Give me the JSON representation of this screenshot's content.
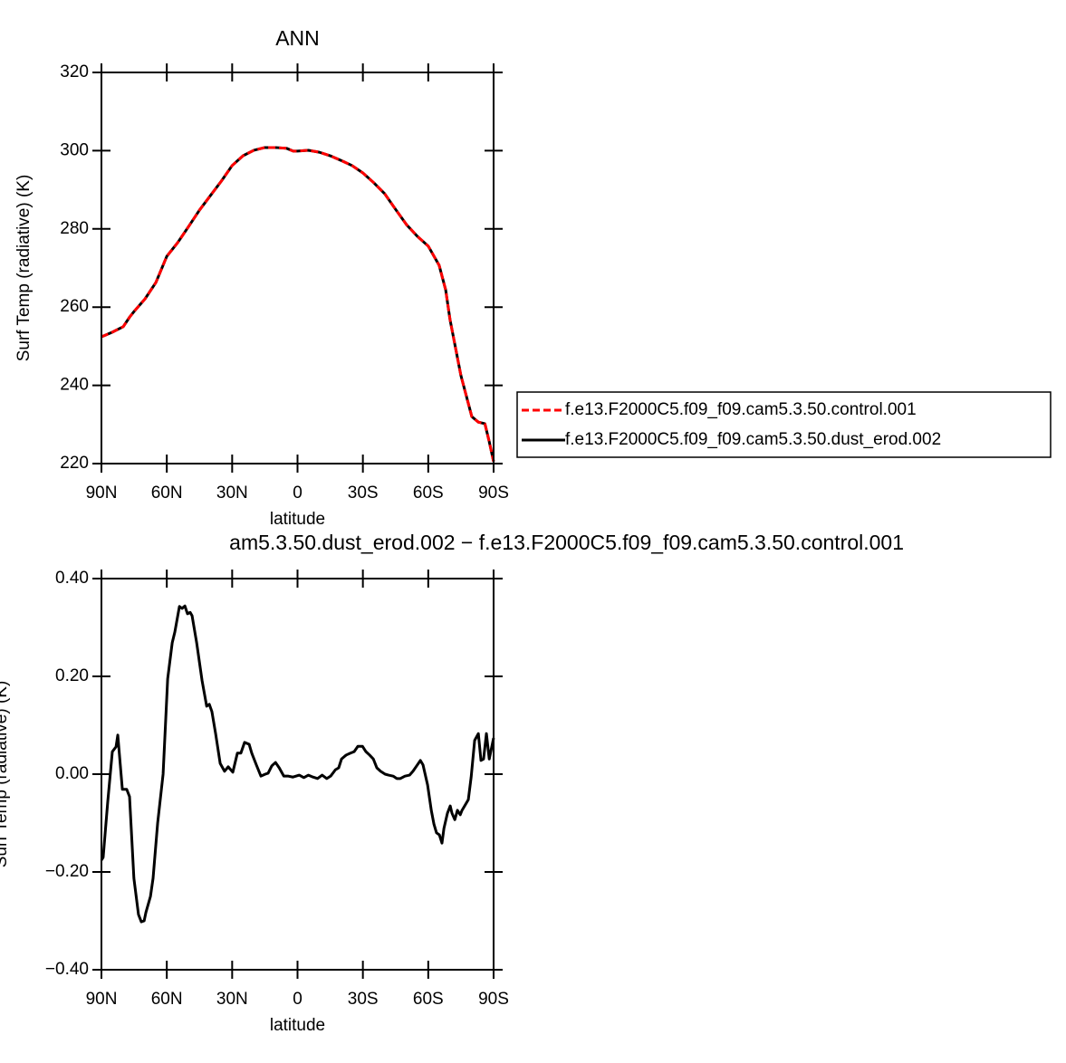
{
  "chart_data": [
    {
      "type": "line",
      "title": "ANN",
      "ylabel": "Surf Temp (radiative) (K)",
      "xlabel": "latitude",
      "x": [
        90,
        85,
        80,
        77,
        75,
        70,
        65,
        60,
        55,
        50,
        45,
        40,
        35,
        30,
        25,
        20,
        15,
        10,
        5,
        2,
        0,
        -5,
        -10,
        -15,
        -20,
        -25,
        -30,
        -35,
        -40,
        -45,
        -50,
        -55,
        -60,
        -65,
        -68,
        -70,
        -75,
        -80,
        -83,
        -86,
        -88,
        -90
      ],
      "series": [
        {
          "name": "f.e13.F2000C5.f09_f09.cam5.3.50.control.001",
          "color": "#ff0000",
          "dashed": true,
          "values": [
            252.4,
            253.6,
            255,
            257.5,
            258.9,
            262.1,
            266.3,
            273,
            276.5,
            280.6,
            284.8,
            288.5,
            292.2,
            296.2,
            298.7,
            300.1,
            300.8,
            300.8,
            300.6,
            299.9,
            299.9,
            300.1,
            299.6,
            298.7,
            297.5,
            296.2,
            294.3,
            291.8,
            289,
            285,
            281.1,
            278.1,
            275.6,
            270.7,
            264.4,
            256.8,
            242.5,
            232,
            230.6,
            230.2,
            225.6,
            220.5
          ]
        },
        {
          "name": "f.e13.F2000C5.f09_f09.cam5.3.50.dust_erod.002",
          "color": "#000000",
          "dashed": false,
          "values": [
            252.4,
            253.6,
            255,
            257.5,
            258.9,
            262.1,
            266.3,
            273,
            276.5,
            280.6,
            284.8,
            288.5,
            292.2,
            296.2,
            298.7,
            300.1,
            300.8,
            300.8,
            300.6,
            299.9,
            299.9,
            300.1,
            299.6,
            298.7,
            297.5,
            296.2,
            294.3,
            291.8,
            289,
            285,
            281.1,
            278.1,
            275.6,
            270.7,
            264.4,
            256.8,
            242.5,
            232,
            230.6,
            230.2,
            225.6,
            220.5
          ]
        }
      ],
      "xlim": [
        90,
        -90
      ],
      "xticks": [
        {
          "value": 90,
          "label": "90N"
        },
        {
          "value": 60,
          "label": "60N"
        },
        {
          "value": 30,
          "label": "30N"
        },
        0,
        {
          "value": -30,
          "label": "30S"
        },
        {
          "value": -60,
          "label": "60S"
        },
        {
          "value": -90,
          "label": "90S"
        }
      ],
      "ylim": [
        220,
        320
      ],
      "yticks": [
        220,
        240,
        260,
        280,
        300,
        320
      ],
      "legend": "right"
    },
    {
      "type": "line",
      "title": "am5.3.50.dust_erod.002 − f.e13.F2000C5.f09_f09.cam5.3.50.control.001",
      "ylabel": "Surf Temp (radiative) (K)",
      "xlabel": "latitude",
      "x": [
        90,
        89.2,
        87.1,
        85,
        83.3,
        82.5,
        80.4,
        78.4,
        77.1,
        75.1,
        73,
        71.7,
        70.4,
        69.6,
        67.5,
        66.3,
        64.2,
        61.7,
        59.6,
        57.5,
        56.3,
        54.2,
        53,
        51.7,
        50.5,
        49.3,
        48.4,
        46.3,
        43.8,
        41.7,
        40.5,
        39.3,
        37.6,
        35.5,
        33.5,
        31.8,
        29.7,
        27.6,
        26,
        24.3,
        22.2,
        21,
        18.9,
        16.8,
        14.8,
        13.5,
        11.8,
        10.1,
        8.4,
        6.3,
        4.2,
        2.1,
        -0.8,
        -2.9,
        -5,
        -7.1,
        -9.2,
        -11.3,
        -13.4,
        -15.2,
        -17.4,
        -18.9,
        -20.2,
        -22.3,
        -24.3,
        -26,
        -27.7,
        -29.8,
        -31.4,
        -33.1,
        -34.8,
        -36.4,
        -38.1,
        -40.2,
        -41.8,
        -43.9,
        -45.6,
        -47.2,
        -49.3,
        -51.4,
        -53,
        -54.7,
        -56.4,
        -57.6,
        -59.7,
        -61.4,
        -62.6,
        -63.8,
        -65.1,
        -66.3,
        -67.2,
        -68.8,
        -70.1,
        -70.9,
        -72.2,
        -73.4,
        -74.7,
        -75.5,
        -76.7,
        -78.4,
        -79.7,
        -81.3,
        -83,
        -84.2,
        -85.4,
        -86.7,
        -88,
        -90
      ],
      "values": [
        -0.176,
        -0.17,
        -0.056,
        0.046,
        0.056,
        0.08,
        -0.031,
        -0.031,
        -0.046,
        -0.213,
        -0.287,
        -0.302,
        -0.3,
        -0.283,
        -0.25,
        -0.213,
        -0.1,
        0,
        0.195,
        0.269,
        0.291,
        0.343,
        0.339,
        0.344,
        0.328,
        0.331,
        0.324,
        0.269,
        0.191,
        0.139,
        0.143,
        0.128,
        0.083,
        0.022,
        0.006,
        0.015,
        0.004,
        0.043,
        0.043,
        0.065,
        0.061,
        0.043,
        0.019,
        -0.004,
        0,
        0.002,
        0.017,
        0.024,
        0.013,
        -0.004,
        -0.004,
        -0.006,
        -0.002,
        -0.007,
        -0.002,
        -0.006,
        -0.009,
        -0.002,
        -0.009,
        -0.004,
        0.009,
        0.013,
        0.031,
        0.039,
        0.043,
        0.046,
        0.057,
        0.057,
        0.046,
        0.039,
        0.031,
        0.013,
        0.006,
        0,
        -0.002,
        -0.004,
        -0.009,
        -0.009,
        -0.004,
        -0.002,
        0.006,
        0.017,
        0.028,
        0.019,
        -0.022,
        -0.074,
        -0.102,
        -0.12,
        -0.124,
        -0.141,
        -0.111,
        -0.08,
        -0.065,
        -0.08,
        -0.093,
        -0.074,
        -0.083,
        -0.074,
        -0.065,
        -0.052,
        -0.006,
        0.069,
        0.083,
        0.028,
        0.031,
        0.083,
        0.031,
        0.074
      ],
      "color": "#000000",
      "xlim": [
        90,
        -90
      ],
      "xticks": [
        {
          "value": 90,
          "label": "90N"
        },
        {
          "value": 60,
          "label": "60N"
        },
        {
          "value": 30,
          "label": "30N"
        },
        0,
        {
          "value": -30,
          "label": "30S"
        },
        {
          "value": -60,
          "label": "60S"
        },
        {
          "value": -90,
          "label": "90S"
        }
      ],
      "ylim": [
        -0.4,
        0.4
      ],
      "yticks": [
        {
          "value": -0.4,
          "label": "−0.40"
        },
        {
          "value": -0.2,
          "label": "−0.20"
        },
        {
          "value": 0,
          "label": "0.00"
        },
        {
          "value": 0.2,
          "label": "0.20"
        },
        {
          "value": 0.4,
          "label": "0.40"
        }
      ]
    }
  ]
}
